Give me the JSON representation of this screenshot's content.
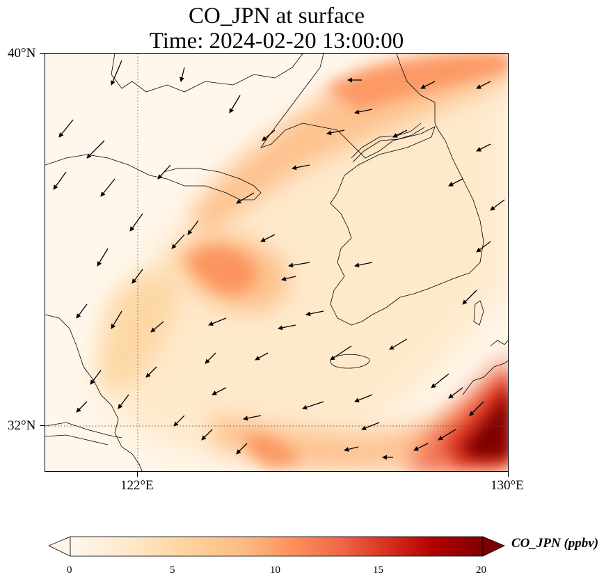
{
  "title": {
    "line1": "CO_JPN at surface",
    "line2": "Time: 2024-02-20 13:00:00"
  },
  "axes": {
    "lat_labels": [
      "40°N",
      "32°N"
    ],
    "lon_labels": [
      "122°E",
      "130°E"
    ],
    "lat_range": [
      31,
      40
    ],
    "lon_range": [
      120,
      130
    ],
    "gridlines": "dotted at 122°E and 32°N"
  },
  "colorbar": {
    "label": "CO_JPN (ppbv)",
    "ticks": [
      "0",
      "5",
      "10",
      "15",
      "20"
    ],
    "range": [
      0,
      20
    ],
    "colormap": "OrRd",
    "extend": "both",
    "colors": [
      "#fff7ec",
      "#fee8c8",
      "#fdd49e",
      "#fdbb84",
      "#fc8d59",
      "#ef6548",
      "#d7301f",
      "#b30000",
      "#7f0000"
    ]
  },
  "map": {
    "background_color": "#fff7ec",
    "plumes": [
      {
        "name": "northern-band",
        "peak_ppbv": 9
      },
      {
        "name": "central-plume",
        "peak_ppbv": 11
      },
      {
        "name": "southern-band",
        "peak_ppbv": 12
      },
      {
        "name": "southeast-max",
        "peak_ppbv": 22
      }
    ],
    "features": [
      "coastline",
      "wind-vectors"
    ]
  }
}
